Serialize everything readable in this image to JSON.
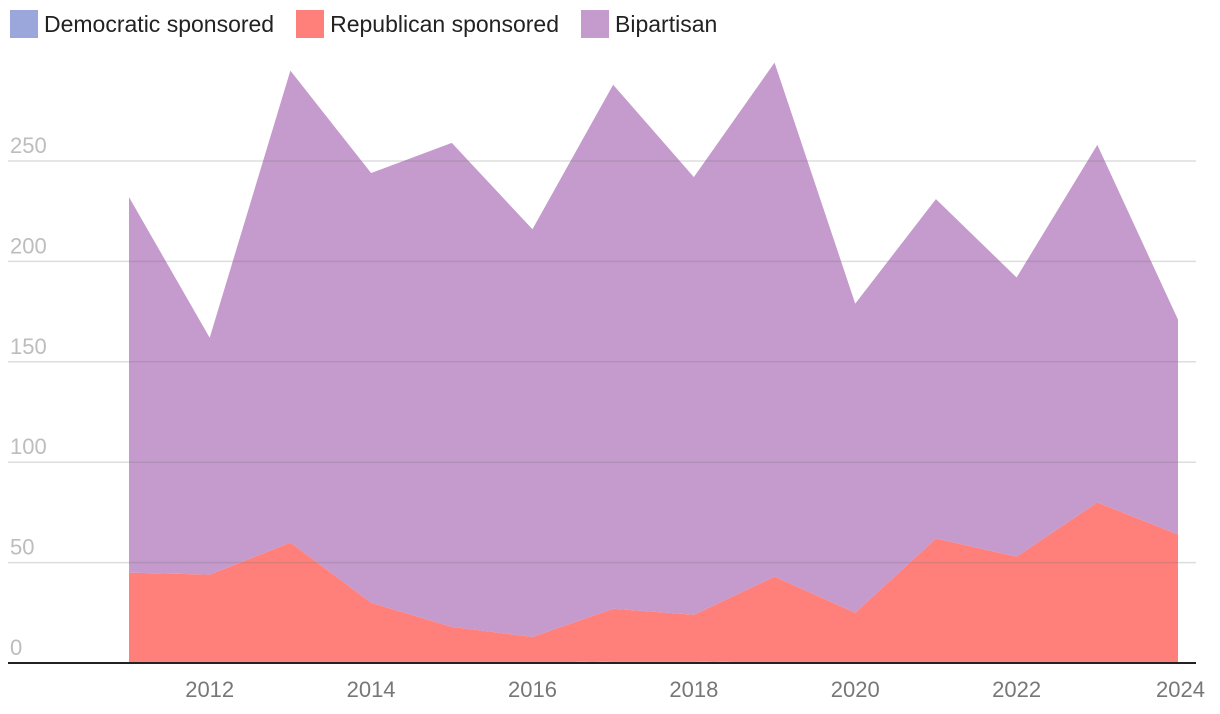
{
  "chart_data": {
    "type": "area",
    "stacked": true,
    "title": "",
    "xlabel": "",
    "ylabel": "",
    "x": [
      2011,
      2012,
      2013,
      2014,
      2015,
      2016,
      2017,
      2018,
      2019,
      2020,
      2021,
      2022,
      2023,
      2024
    ],
    "x_tick_labels": [
      "2012",
      "2014",
      "2016",
      "2018",
      "2020",
      "2022",
      "2024"
    ],
    "x_ticks": [
      2012,
      2014,
      2016,
      2018,
      2020,
      2022,
      2024
    ],
    "y_ticks": [
      0,
      50,
      100,
      150,
      200,
      250
    ],
    "y_tick_labels": [
      "0",
      "50",
      "100",
      "150",
      "200",
      "250"
    ],
    "ylim": [
      0,
      300
    ],
    "xlim": [
      2009.75,
      2024.1
    ],
    "grid": true,
    "legend_position": "top-left",
    "series": [
      {
        "name": "Democratic sponsored",
        "color": "#9ba6da",
        "values": [
          0,
          0,
          0,
          0,
          0,
          0,
          1,
          1,
          0,
          0,
          0,
          0,
          0,
          0
        ]
      },
      {
        "name": "Republican sponsored",
        "color": "#ff7f7b",
        "values": [
          45,
          44,
          60,
          30,
          18,
          13,
          26,
          23,
          43,
          25,
          62,
          53,
          80,
          64
        ]
      },
      {
        "name": "Bipartisan",
        "color": "#c59acd",
        "values": [
          187,
          118,
          235,
          214,
          241,
          203,
          261,
          218,
          256,
          154,
          169,
          139,
          178,
          107
        ]
      }
    ]
  }
}
